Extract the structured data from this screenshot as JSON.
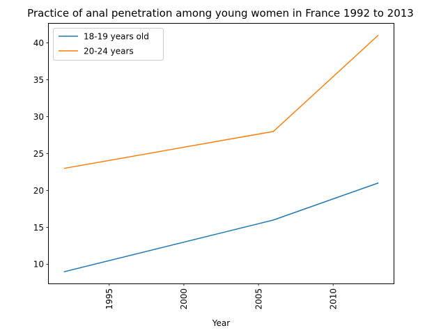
{
  "chart_data": {
    "type": "line",
    "title": "Practice of anal penetration among young women in France 1992 to 2013",
    "xlabel": "Year",
    "ylabel": "",
    "x": [
      1992,
      2006,
      2013
    ],
    "series": [
      {
        "name": "18-19 years old",
        "values": [
          9,
          16,
          21
        ],
        "color": "#1f77b4"
      },
      {
        "name": "20-24 years",
        "values": [
          23,
          28,
          41
        ],
        "color": "#ff7f0e"
      }
    ],
    "xlim": [
      1990.95,
      2014.05
    ],
    "ylim": [
      7.4,
      42.6
    ],
    "xticks": [
      1995,
      2000,
      2005,
      2010
    ],
    "yticks": [
      10,
      15,
      20,
      25,
      30,
      35,
      40
    ],
    "xtick_rotation": "vertical",
    "grid": false,
    "legend_position": "upper left"
  }
}
